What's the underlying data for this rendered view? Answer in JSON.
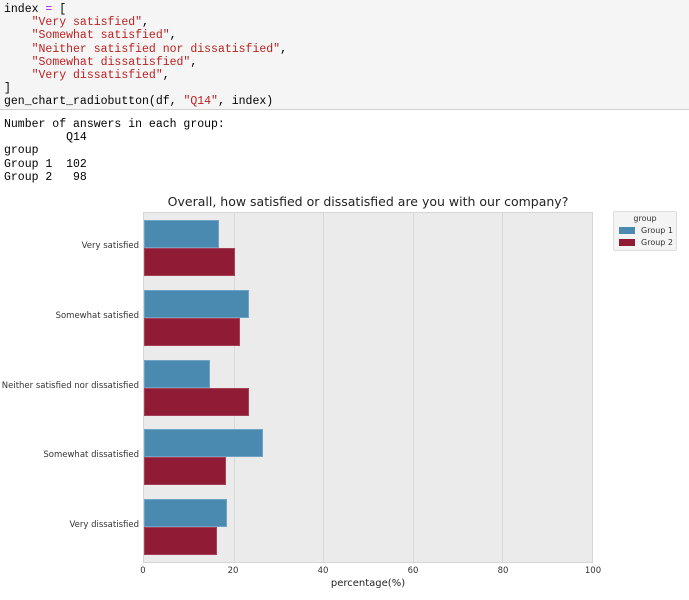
{
  "code_cell": {
    "lines": [
      {
        "parts": [
          {
            "t": "index ",
            "c": "plain"
          },
          {
            "t": "=",
            "c": "op"
          },
          {
            "t": " [",
            "c": "plain"
          }
        ]
      },
      {
        "parts": [
          {
            "t": "    ",
            "c": "plain"
          },
          {
            "t": "\"Very satisfied\"",
            "c": "str"
          },
          {
            "t": ",",
            "c": "plain"
          }
        ]
      },
      {
        "parts": [
          {
            "t": "    ",
            "c": "plain"
          },
          {
            "t": "\"Somewhat satisfied\"",
            "c": "str"
          },
          {
            "t": ",",
            "c": "plain"
          }
        ]
      },
      {
        "parts": [
          {
            "t": "    ",
            "c": "plain"
          },
          {
            "t": "\"Neither satisfied nor dissatisfied\"",
            "c": "str"
          },
          {
            "t": ",",
            "c": "plain"
          }
        ]
      },
      {
        "parts": [
          {
            "t": "    ",
            "c": "plain"
          },
          {
            "t": "\"Somewhat dissatisfied\"",
            "c": "str"
          },
          {
            "t": ",",
            "c": "plain"
          }
        ]
      },
      {
        "parts": [
          {
            "t": "    ",
            "c": "plain"
          },
          {
            "t": "\"Very dissatisfied\"",
            "c": "str"
          },
          {
            "t": ",",
            "c": "plain"
          }
        ]
      },
      {
        "parts": [
          {
            "t": "]",
            "c": "plain"
          }
        ]
      },
      {
        "parts": [
          {
            "t": "gen_chart_radiobutton(df, ",
            "c": "plain"
          },
          {
            "t": "\"Q14\"",
            "c": "str"
          },
          {
            "t": ", index)",
            "c": "plain"
          }
        ]
      }
    ]
  },
  "output": {
    "text": "Number of answers in each group:\n         Q14\ngroup\nGroup 1  102\nGroup 2   98"
  },
  "colors": {
    "group1": "#4a8ab1",
    "group2": "#8f1b35",
    "plot_bg": "#ebebeb"
  },
  "chart_data": {
    "type": "bar",
    "orientation": "horizontal",
    "title": "Overall, how satisfied or dissatisfied are you with our company?",
    "xlabel": "percentage(%)",
    "ylabel": "",
    "xlim": [
      0,
      100
    ],
    "xticks": [
      0,
      20,
      40,
      60,
      80,
      100
    ],
    "grid": true,
    "legend_title": "group",
    "legend_position": "upper right outside",
    "categories": [
      "Very satisfied",
      "Somewhat satisfied",
      "Neither satisfied nor dissatisfied",
      "Somewhat dissatisfied",
      "Very dissatisfied"
    ],
    "series": [
      {
        "name": "Group 1",
        "values": [
          16.7,
          23.5,
          14.7,
          26.5,
          18.6
        ]
      },
      {
        "name": "Group 2",
        "values": [
          20.4,
          21.4,
          23.5,
          18.4,
          16.3
        ]
      }
    ]
  }
}
